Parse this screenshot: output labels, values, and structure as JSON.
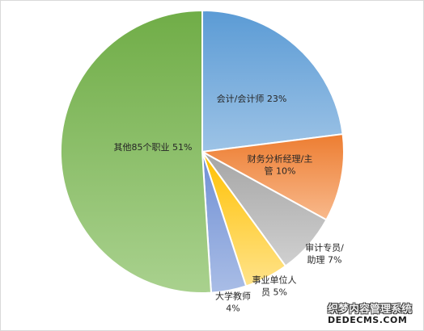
{
  "chart_data": {
    "type": "pie",
    "start_angle_deg": 0,
    "direction": "clockwise",
    "slices": [
      {
        "label_lines": [
          "会计/会计师 23%"
        ],
        "value": 23,
        "color_light": "#9dc3e6",
        "color_dark": "#5b9bd5"
      },
      {
        "label_lines": [
          "财务分析经理/主",
          "管 10%"
        ],
        "value": 10,
        "color_light": "#f8b98c",
        "color_dark": "#ed7d31"
      },
      {
        "label_lines": [
          "审计专员/",
          "助理 7%"
        ],
        "value": 7,
        "color_light": "#d0d0d0",
        "color_dark": "#a5a5a5"
      },
      {
        "label_lines": [
          "事业单位人",
          "员 5%"
        ],
        "value": 5,
        "color_light": "#ffe38a",
        "color_dark": "#ffc000"
      },
      {
        "label_lines": [
          "大学教师",
          "4%"
        ],
        "value": 4,
        "color_light": "#a9bde6",
        "color_dark": "#6f8fd4"
      },
      {
        "label_lines": [
          "其他85个职业 51%"
        ],
        "value": 51,
        "color_light": "#a9d18e",
        "color_dark": "#70ad47"
      }
    ]
  },
  "watermark": {
    "line1": "织梦内容管理系统",
    "line2": "DEDECMS.COM"
  }
}
